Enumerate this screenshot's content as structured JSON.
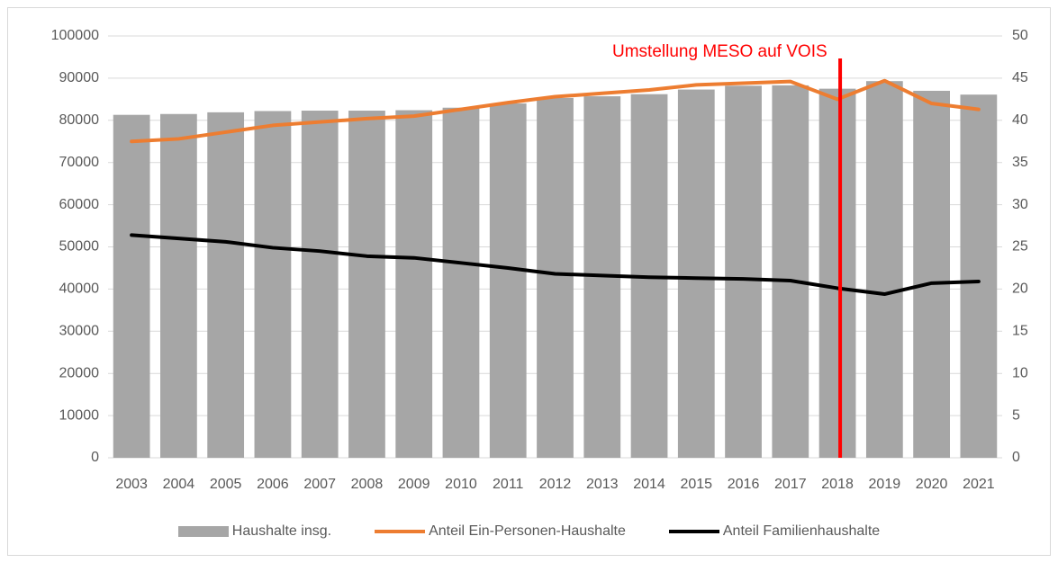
{
  "chart_data": {
    "type": "bar-line",
    "categories": [
      "2003",
      "2004",
      "2005",
      "2006",
      "2007",
      "2008",
      "2009",
      "2010",
      "2011",
      "2012",
      "2013",
      "2014",
      "2015",
      "2016",
      "2017",
      "2018",
      "2019",
      "2020",
      "2021"
    ],
    "series": [
      {
        "name": "Haushalte insg.",
        "type": "bar",
        "color": "#a6a6a6",
        "axis": "y",
        "values": [
          81300,
          81500,
          81900,
          82200,
          82300,
          82300,
          82400,
          83000,
          84000,
          85300,
          85700,
          86200,
          87300,
          88200,
          88300,
          87500,
          89300,
          87000,
          86100
        ]
      },
      {
        "name": "Anteil Ein-Personen-Haushalte",
        "type": "line",
        "color": "#ed7d31",
        "axis": "y2",
        "values": [
          37.5,
          37.8,
          38.6,
          39.4,
          39.8,
          40.2,
          40.5,
          41.3,
          42.1,
          42.8,
          43.2,
          43.6,
          44.2,
          44.4,
          44.6,
          42.5,
          44.7,
          42.0,
          41.3
        ]
      },
      {
        "name": "Anteil Familienhaushalte",
        "type": "line",
        "color": "#000000",
        "axis": "y2",
        "values": [
          26.4,
          26.0,
          25.6,
          24.9,
          24.5,
          23.9,
          23.7,
          23.1,
          22.5,
          21.8,
          21.6,
          21.4,
          21.3,
          21.2,
          21.0,
          20.1,
          19.4,
          20.7,
          20.9
        ]
      }
    ],
    "ylim": [
      0,
      100000
    ],
    "yticks": [
      0,
      10000,
      20000,
      30000,
      40000,
      50000,
      60000,
      70000,
      80000,
      90000,
      100000
    ],
    "y2lim": [
      0,
      50
    ],
    "y2ticks": [
      0,
      5,
      10,
      15,
      20,
      25,
      30,
      35,
      40,
      45,
      50
    ],
    "annotation": {
      "text": "Umstellung MESO auf VOIS",
      "x": "2018",
      "color": "#ff0000"
    },
    "legend": "bottom"
  }
}
